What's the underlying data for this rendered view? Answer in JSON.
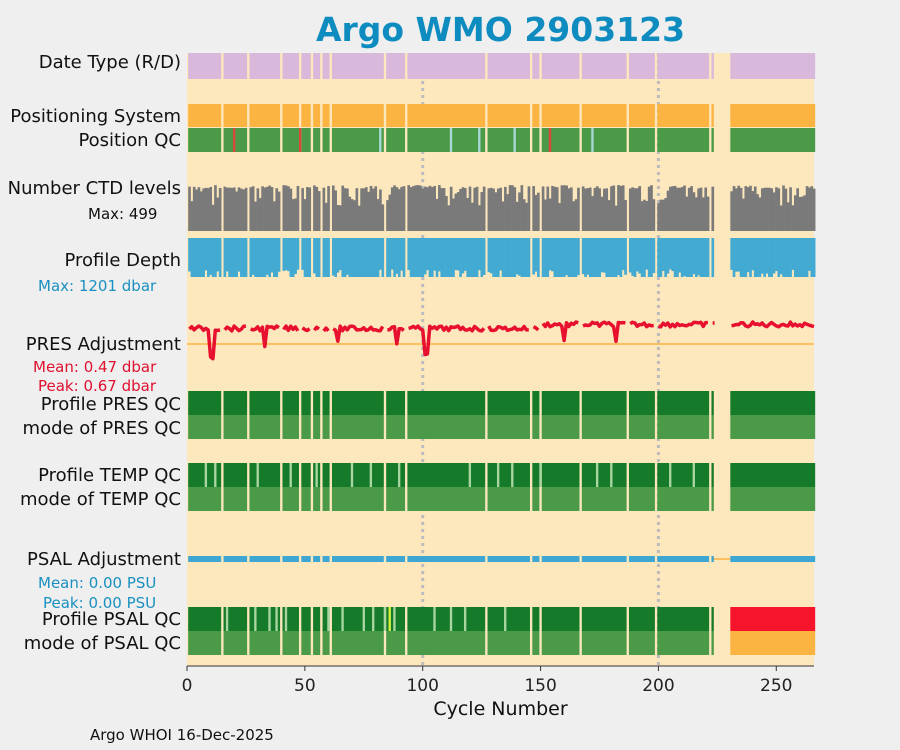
{
  "title": "Argo WMO 2903123",
  "xlabel": "Cycle Number",
  "credit": "Argo WHOI 16-Dec-2025",
  "row_labels": {
    "date_type": "Date Type (R/D)",
    "positioning_system": "Positioning System",
    "position_qc": "Position QC",
    "n_ctd_levels": "Number CTD levels",
    "n_ctd_max": "Max: 499",
    "profile_depth": "Profile Depth",
    "profile_depth_max": "Max: 1201 dbar",
    "pres_adjustment": "PRES Adjustment",
    "pres_mean": "Mean: 0.47 dbar",
    "pres_peak": "Peak: 0.67 dbar",
    "profile_pres_qc": "Profile PRES QC",
    "mode_pres_qc": "mode of PRES QC",
    "profile_temp_qc": "Profile TEMP QC",
    "mode_temp_qc": "mode of TEMP QC",
    "psal_adjustment": "PSAL Adjustment",
    "psal_mean": "Mean: 0.00 PSU",
    "psal_peak": "Peak: 0.00 PSU",
    "profile_psal_qc": "Profile PSAL QC",
    "mode_psal_qc": "mode of PSAL QC"
  },
  "colors": {
    "background": "#fde7bd",
    "date_type": "#d8b9dc",
    "positioning": "#fbb442",
    "qc_good": "#4a9a48",
    "qc_profile_A": "#157a2a",
    "qc_light": "#a8d8d8",
    "qc_bad": "#d9483b",
    "ctd_levels": "#7a7a7a",
    "profile_depth": "#43aad2",
    "pres_adj": "#e8102f",
    "psal_adj": "#3ea6d2",
    "psal_profile_F": "#f5142b",
    "psal_mode_probably": "#fbb442",
    "title": "#0f8cbf",
    "pres_stats": "#e0102f",
    "psal_stats": "#1a90c0"
  },
  "chart_data": {
    "type": "table",
    "x": {
      "label": "Cycle Number",
      "range": [
        0,
        266
      ],
      "ticks": [
        0,
        50,
        100,
        150,
        200,
        250
      ],
      "grid_at": [
        100,
        200
      ]
    },
    "cycles_present": [
      [
        1,
        14
      ],
      [
        16,
        25
      ],
      [
        27,
        39
      ],
      [
        41,
        47
      ],
      [
        49,
        52
      ],
      [
        54,
        56
      ],
      [
        58,
        60
      ],
      [
        62,
        83
      ],
      [
        85,
        92
      ],
      [
        94,
        126
      ],
      [
        128,
        145
      ],
      [
        147,
        149
      ],
      [
        151,
        166
      ],
      [
        168,
        186
      ],
      [
        188,
        198
      ],
      [
        200,
        221
      ],
      [
        223,
        223
      ],
      [
        231,
        266
      ]
    ],
    "position_qc_flags": [
      {
        "cycle": 20,
        "flag": "bad"
      },
      {
        "cycle": 48,
        "flag": "bad"
      },
      {
        "cycle": 82,
        "flag": "light"
      },
      {
        "cycle": 112,
        "flag": "light"
      },
      {
        "cycle": 124,
        "flag": "light"
      },
      {
        "cycle": 139,
        "flag": "light"
      },
      {
        "cycle": 154,
        "flag": "bad"
      },
      {
        "cycle": 172,
        "flag": "light"
      }
    ],
    "n_ctd_levels_max": 499,
    "profile_depth_max_dbar": 1201,
    "pres_adjustment": {
      "mean_dbar": 0.47,
      "peak_dbar": 0.67
    },
    "psal_adjustment": {
      "mean_psu": 0.0,
      "peak_psu": 0.0
    },
    "psal_profile_qc_change_cycle": 231
  }
}
